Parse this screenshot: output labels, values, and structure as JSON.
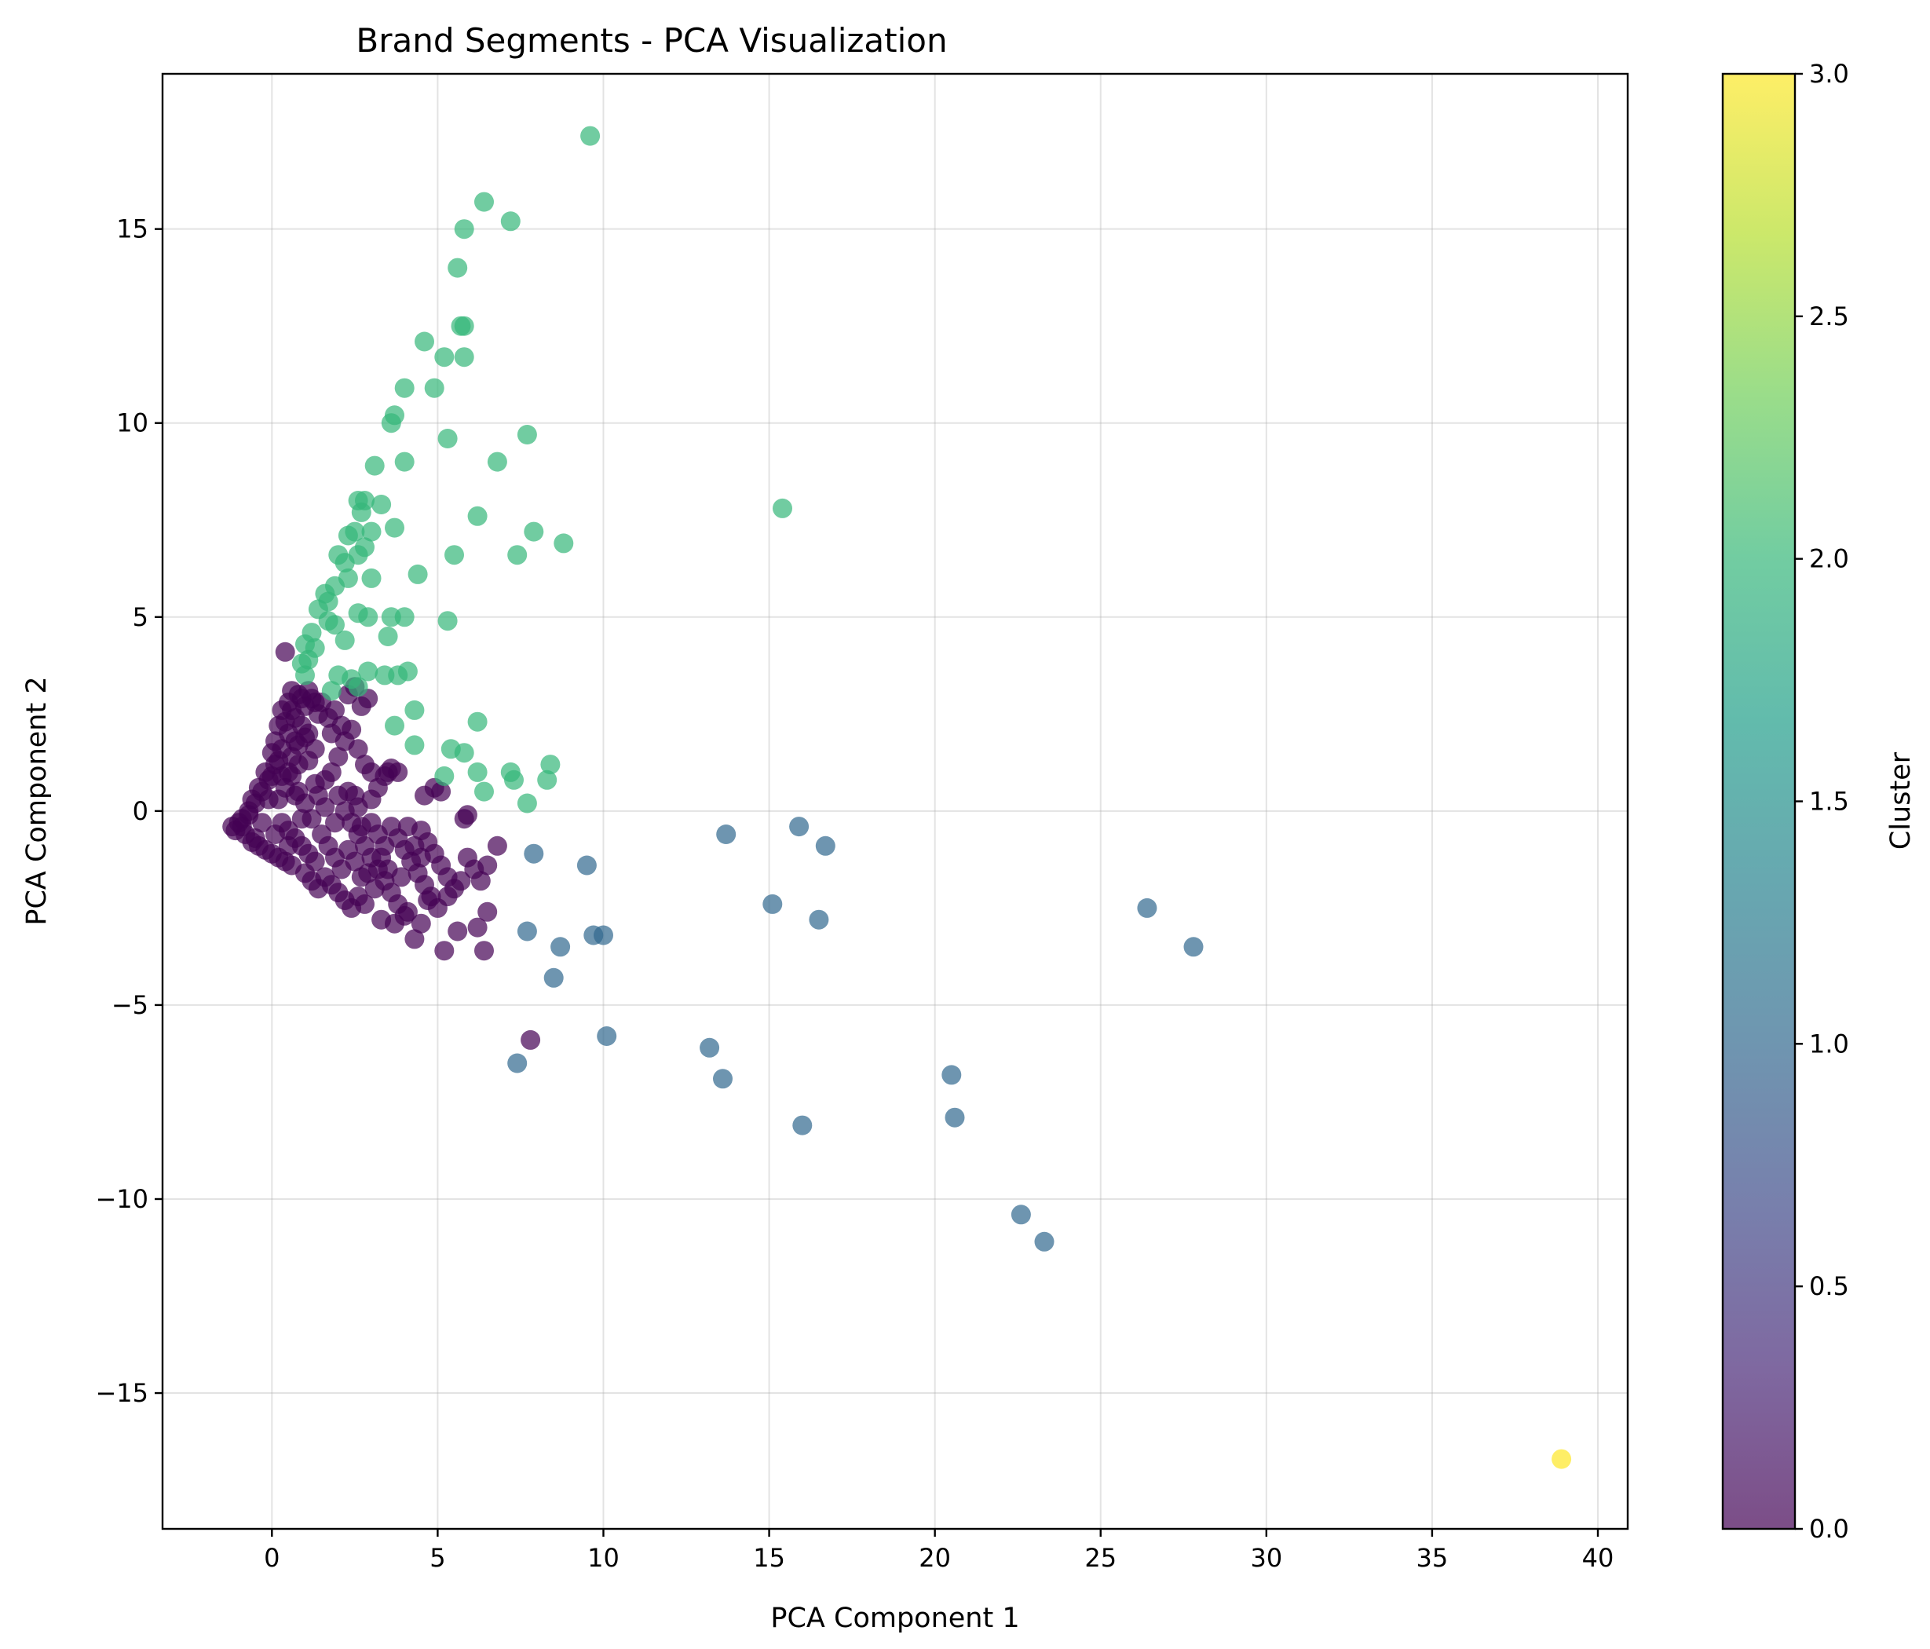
{
  "chart_data": {
    "type": "scatter",
    "title": "Brand Segments - PCA Visualization",
    "xlabel": "PCA Component 1",
    "ylabel": "PCA Component 2",
    "xlim": [
      -3.3,
      40.9
    ],
    "ylim": [
      -18.5,
      19.0
    ],
    "xticks": [
      0,
      5,
      10,
      15,
      20,
      25,
      30,
      35,
      40
    ],
    "yticks": [
      -15,
      -10,
      -5,
      0,
      5,
      10,
      15
    ],
    "xtick_labels": [
      "0",
      "5",
      "10",
      "15",
      "20",
      "25",
      "30",
      "35",
      "40"
    ],
    "ytick_labels": [
      "−15",
      "−10",
      "−5",
      "0",
      "5",
      "10",
      "15"
    ],
    "grid": true,
    "colorbar": {
      "label": "Cluster",
      "range": [
        0.0,
        3.0
      ],
      "ticks": [
        0.0,
        0.5,
        1.0,
        1.5,
        2.0,
        2.5,
        3.0
      ],
      "tick_labels": [
        "0.0",
        "0.5",
        "1.0",
        "1.5",
        "2.0",
        "2.5",
        "3.0"
      ],
      "colormap": "viridis",
      "stops": [
        "#440154",
        "#482878",
        "#3e4989",
        "#31688e",
        "#26828e",
        "#1f9e89",
        "#35b779",
        "#6ece58",
        "#b5de2b",
        "#fde725"
      ]
    },
    "cluster_colors": [
      "#440154",
      "#31688e",
      "#35b779",
      "#fde725"
    ],
    "point_alpha": 0.7,
    "series": [
      {
        "cluster": 0,
        "points": [
          [
            -1.2,
            -0.4
          ],
          [
            -1.0,
            -0.3
          ],
          [
            -1.1,
            -0.5
          ],
          [
            -0.9,
            -0.2
          ],
          [
            -0.8,
            -0.6
          ],
          [
            -0.7,
            -0.1
          ],
          [
            -0.6,
            -0.8
          ],
          [
            -0.5,
            0.2
          ],
          [
            -0.4,
            -0.9
          ],
          [
            -0.3,
            0.5
          ],
          [
            -0.2,
            -1.0
          ],
          [
            -0.1,
            0.8
          ],
          [
            0.0,
            -1.1
          ],
          [
            0.1,
            1.2
          ],
          [
            0.2,
            -1.2
          ],
          [
            0.3,
            1.6
          ],
          [
            0.4,
            -1.3
          ],
          [
            0.5,
            2.0
          ],
          [
            0.6,
            -1.4
          ],
          [
            0.7,
            2.4
          ],
          [
            0.2,
            0.3
          ],
          [
            0.4,
            0.6
          ],
          [
            0.6,
            0.9
          ],
          [
            0.8,
            1.2
          ],
          [
            0.3,
            -0.3
          ],
          [
            0.5,
            -0.5
          ],
          [
            0.7,
            -0.7
          ],
          [
            0.9,
            -0.9
          ],
          [
            1.1,
            -1.1
          ],
          [
            1.3,
            -1.3
          ],
          [
            0.5,
            2.8
          ],
          [
            0.6,
            3.1
          ],
          [
            0.8,
            3.0
          ],
          [
            1.0,
            2.7
          ],
          [
            1.2,
            2.9
          ],
          [
            1.4,
            2.5
          ],
          [
            0.7,
            1.8
          ],
          [
            0.9,
            2.2
          ],
          [
            1.1,
            2.0
          ],
          [
            1.3,
            1.6
          ],
          [
            0.4,
            4.1
          ],
          [
            0.3,
            2.6
          ],
          [
            0.2,
            2.2
          ],
          [
            0.1,
            1.8
          ],
          [
            0.0,
            1.5
          ],
          [
            -0.2,
            1.0
          ],
          [
            -0.4,
            0.6
          ],
          [
            -0.6,
            0.3
          ],
          [
            0.5,
            1.0
          ],
          [
            0.8,
            0.5
          ],
          [
            1.0,
            0.2
          ],
          [
            1.2,
            -0.2
          ],
          [
            1.4,
            0.4
          ],
          [
            1.6,
            0.8
          ],
          [
            1.8,
            1.0
          ],
          [
            2.0,
            1.4
          ],
          [
            1.5,
            -0.6
          ],
          [
            1.7,
            -0.9
          ],
          [
            1.9,
            -1.2
          ],
          [
            2.1,
            -1.5
          ],
          [
            1.0,
            -1.6
          ],
          [
            1.2,
            -1.8
          ],
          [
            1.4,
            -2.0
          ],
          [
            1.6,
            -1.7
          ],
          [
            1.8,
            -1.9
          ],
          [
            2.0,
            -2.1
          ],
          [
            2.2,
            -2.3
          ],
          [
            2.4,
            -2.5
          ],
          [
            2.6,
            -2.2
          ],
          [
            2.8,
            -2.4
          ],
          [
            1.5,
            2.8
          ],
          [
            1.7,
            2.4
          ],
          [
            1.9,
            2.6
          ],
          [
            2.1,
            2.2
          ],
          [
            2.3,
            3.0
          ],
          [
            2.5,
            3.2
          ],
          [
            2.7,
            2.7
          ],
          [
            2.9,
            2.9
          ],
          [
            2.2,
            1.8
          ],
          [
            2.4,
            2.1
          ],
          [
            2.6,
            1.6
          ],
          [
            2.8,
            1.2
          ],
          [
            3.0,
            1.0
          ],
          [
            3.2,
            0.6
          ],
          [
            3.4,
            0.9
          ],
          [
            3.6,
            1.1
          ],
          [
            3.8,
            1.0
          ],
          [
            2.0,
            0.4
          ],
          [
            2.2,
            0.0
          ],
          [
            2.4,
            -0.3
          ],
          [
            2.6,
            -0.6
          ],
          [
            2.8,
            -0.9
          ],
          [
            3.0,
            -1.2
          ],
          [
            3.2,
            -1.5
          ],
          [
            3.4,
            -1.8
          ],
          [
            3.6,
            -2.1
          ],
          [
            3.8,
            -2.4
          ],
          [
            4.0,
            -2.7
          ],
          [
            3.0,
            -0.3
          ],
          [
            3.2,
            -0.6
          ],
          [
            3.4,
            -0.9
          ],
          [
            3.6,
            -0.4
          ],
          [
            3.8,
            -0.7
          ],
          [
            4.0,
            -1.0
          ],
          [
            4.2,
            -1.3
          ],
          [
            4.4,
            -1.6
          ],
          [
            4.6,
            -1.9
          ],
          [
            4.8,
            -2.2
          ],
          [
            5.0,
            -2.5
          ],
          [
            4.5,
            -0.5
          ],
          [
            4.7,
            -0.8
          ],
          [
            4.9,
            -1.1
          ],
          [
            5.1,
            -1.4
          ],
          [
            5.3,
            -1.7
          ],
          [
            5.5,
            -2.0
          ],
          [
            5.7,
            -1.8
          ],
          [
            5.9,
            -1.2
          ],
          [
            6.1,
            -1.5
          ],
          [
            6.3,
            -1.8
          ],
          [
            6.5,
            -1.4
          ],
          [
            4.3,
            -3.3
          ],
          [
            5.2,
            -3.6
          ],
          [
            5.6,
            -3.1
          ],
          [
            6.4,
            -3.6
          ],
          [
            6.2,
            -3.0
          ],
          [
            6.5,
            -2.6
          ],
          [
            5.8,
            -0.2
          ],
          [
            5.9,
            -0.1
          ],
          [
            6.8,
            -0.9
          ],
          [
            4.6,
            0.4
          ],
          [
            4.9,
            0.6
          ],
          [
            5.1,
            0.5
          ],
          [
            3.5,
            1.0
          ],
          [
            3.0,
            0.3
          ],
          [
            2.6,
            0.1
          ],
          [
            2.3,
            0.5
          ],
          [
            1.9,
            -0.3
          ],
          [
            1.6,
            0.1
          ],
          [
            1.3,
            0.7
          ],
          [
            1.1,
            1.3
          ],
          [
            0.9,
            -0.2
          ],
          [
            0.7,
            0.4
          ],
          [
            0.5,
            -0.9
          ],
          [
            0.3,
            0.9
          ],
          [
            0.1,
            -0.6
          ],
          [
            -0.1,
            0.3
          ],
          [
            -0.3,
            -0.3
          ],
          [
            -0.5,
            -0.7
          ],
          [
            -0.7,
            0.0
          ],
          [
            -0.9,
            -0.4
          ],
          [
            0.6,
            1.4
          ],
          [
            0.8,
            1.7
          ],
          [
            1.0,
            1.9
          ],
          [
            0.4,
            2.3
          ],
          [
            0.6,
            2.6
          ],
          [
            0.9,
            2.9
          ],
          [
            1.1,
            3.1
          ],
          [
            1.3,
            2.8
          ],
          [
            0.2,
            1.3
          ],
          [
            0.0,
            0.9
          ],
          [
            2.5,
            0.4
          ],
          [
            2.7,
            -0.4
          ],
          [
            2.9,
            -1.6
          ],
          [
            3.1,
            -2.0
          ],
          [
            3.3,
            -2.8
          ],
          [
            3.7,
            -2.9
          ],
          [
            4.1,
            -2.6
          ],
          [
            4.5,
            -2.9
          ],
          [
            4.7,
            -2.3
          ],
          [
            5.3,
            -2.2
          ],
          [
            2.3,
            -1.0
          ],
          [
            2.5,
            -1.3
          ],
          [
            2.7,
            -1.7
          ],
          [
            3.3,
            -1.2
          ],
          [
            3.5,
            -1.5
          ],
          [
            3.9,
            -1.7
          ],
          [
            4.1,
            -0.4
          ],
          [
            4.3,
            -0.9
          ],
          [
            4.5,
            -1.2
          ],
          [
            1.8,
            2.0
          ],
          [
            7.8,
            -5.9
          ]
        ]
      },
      {
        "cluster": 1,
        "points": [
          [
            7.9,
            -1.1
          ],
          [
            9.5,
            -1.4
          ],
          [
            7.7,
            -3.1
          ],
          [
            8.7,
            -3.5
          ],
          [
            9.7,
            -3.2
          ],
          [
            10.0,
            -3.2
          ],
          [
            8.5,
            -4.3
          ],
          [
            7.4,
            -6.5
          ],
          [
            10.1,
            -5.8
          ],
          [
            13.7,
            -0.6
          ],
          [
            15.9,
            -0.4
          ],
          [
            16.7,
            -0.9
          ],
          [
            15.1,
            -2.4
          ],
          [
            16.5,
            -2.8
          ],
          [
            13.2,
            -6.1
          ],
          [
            13.6,
            -6.9
          ],
          [
            16.0,
            -8.1
          ],
          [
            20.5,
            -6.8
          ],
          [
            20.6,
            -7.9
          ],
          [
            22.6,
            -10.4
          ],
          [
            23.3,
            -11.1
          ],
          [
            26.4,
            -2.5
          ],
          [
            27.8,
            -3.5
          ]
        ]
      },
      {
        "cluster": 2,
        "points": [
          [
            9.6,
            17.4
          ],
          [
            6.4,
            15.7
          ],
          [
            7.2,
            15.2
          ],
          [
            5.8,
            15.0
          ],
          [
            5.6,
            14.0
          ],
          [
            5.7,
            12.5
          ],
          [
            5.8,
            12.5
          ],
          [
            4.6,
            12.1
          ],
          [
            5.2,
            11.7
          ],
          [
            5.8,
            11.7
          ],
          [
            4.0,
            10.9
          ],
          [
            4.9,
            10.9
          ],
          [
            3.7,
            10.2
          ],
          [
            3.6,
            10.0
          ],
          [
            5.3,
            9.6
          ],
          [
            7.7,
            9.7
          ],
          [
            3.1,
            8.9
          ],
          [
            4.0,
            9.0
          ],
          [
            6.8,
            9.0
          ],
          [
            2.6,
            8.0
          ],
          [
            2.8,
            8.0
          ],
          [
            3.3,
            7.9
          ],
          [
            2.7,
            7.7
          ],
          [
            6.2,
            7.6
          ],
          [
            15.4,
            7.8
          ],
          [
            3.7,
            7.3
          ],
          [
            7.9,
            7.2
          ],
          [
            8.8,
            6.9
          ],
          [
            2.3,
            7.1
          ],
          [
            2.5,
            7.2
          ],
          [
            3.0,
            7.2
          ],
          [
            2.8,
            6.8
          ],
          [
            2.6,
            6.6
          ],
          [
            2.0,
            6.6
          ],
          [
            2.2,
            6.4
          ],
          [
            5.5,
            6.6
          ],
          [
            7.4,
            6.6
          ],
          [
            2.3,
            6.0
          ],
          [
            3.0,
            6.0
          ],
          [
            4.4,
            6.1
          ],
          [
            1.9,
            5.8
          ],
          [
            1.6,
            5.6
          ],
          [
            1.7,
            5.4
          ],
          [
            1.4,
            5.2
          ],
          [
            2.6,
            5.1
          ],
          [
            2.9,
            5.0
          ],
          [
            3.6,
            5.0
          ],
          [
            4.0,
            5.0
          ],
          [
            5.3,
            4.9
          ],
          [
            1.9,
            4.8
          ],
          [
            1.7,
            4.9
          ],
          [
            1.2,
            4.6
          ],
          [
            1.0,
            4.3
          ],
          [
            1.3,
            4.2
          ],
          [
            2.2,
            4.4
          ],
          [
            3.5,
            4.5
          ],
          [
            1.1,
            3.9
          ],
          [
            0.9,
            3.8
          ],
          [
            1.0,
            3.5
          ],
          [
            2.0,
            3.5
          ],
          [
            2.4,
            3.4
          ],
          [
            2.9,
            3.6
          ],
          [
            3.4,
            3.5
          ],
          [
            3.8,
            3.5
          ],
          [
            4.1,
            3.6
          ],
          [
            1.8,
            3.1
          ],
          [
            2.6,
            3.2
          ],
          [
            3.7,
            2.2
          ],
          [
            4.3,
            2.6
          ],
          [
            6.2,
            2.3
          ],
          [
            4.3,
            1.7
          ],
          [
            5.4,
            1.6
          ],
          [
            5.8,
            1.5
          ],
          [
            6.2,
            1.0
          ],
          [
            7.2,
            1.0
          ],
          [
            7.3,
            0.8
          ],
          [
            8.3,
            0.8
          ],
          [
            8.4,
            1.2
          ],
          [
            5.2,
            0.9
          ],
          [
            6.4,
            0.5
          ],
          [
            7.7,
            0.2
          ]
        ]
      },
      {
        "cluster": 3,
        "points": [
          [
            38.9,
            -16.7
          ]
        ]
      }
    ]
  }
}
